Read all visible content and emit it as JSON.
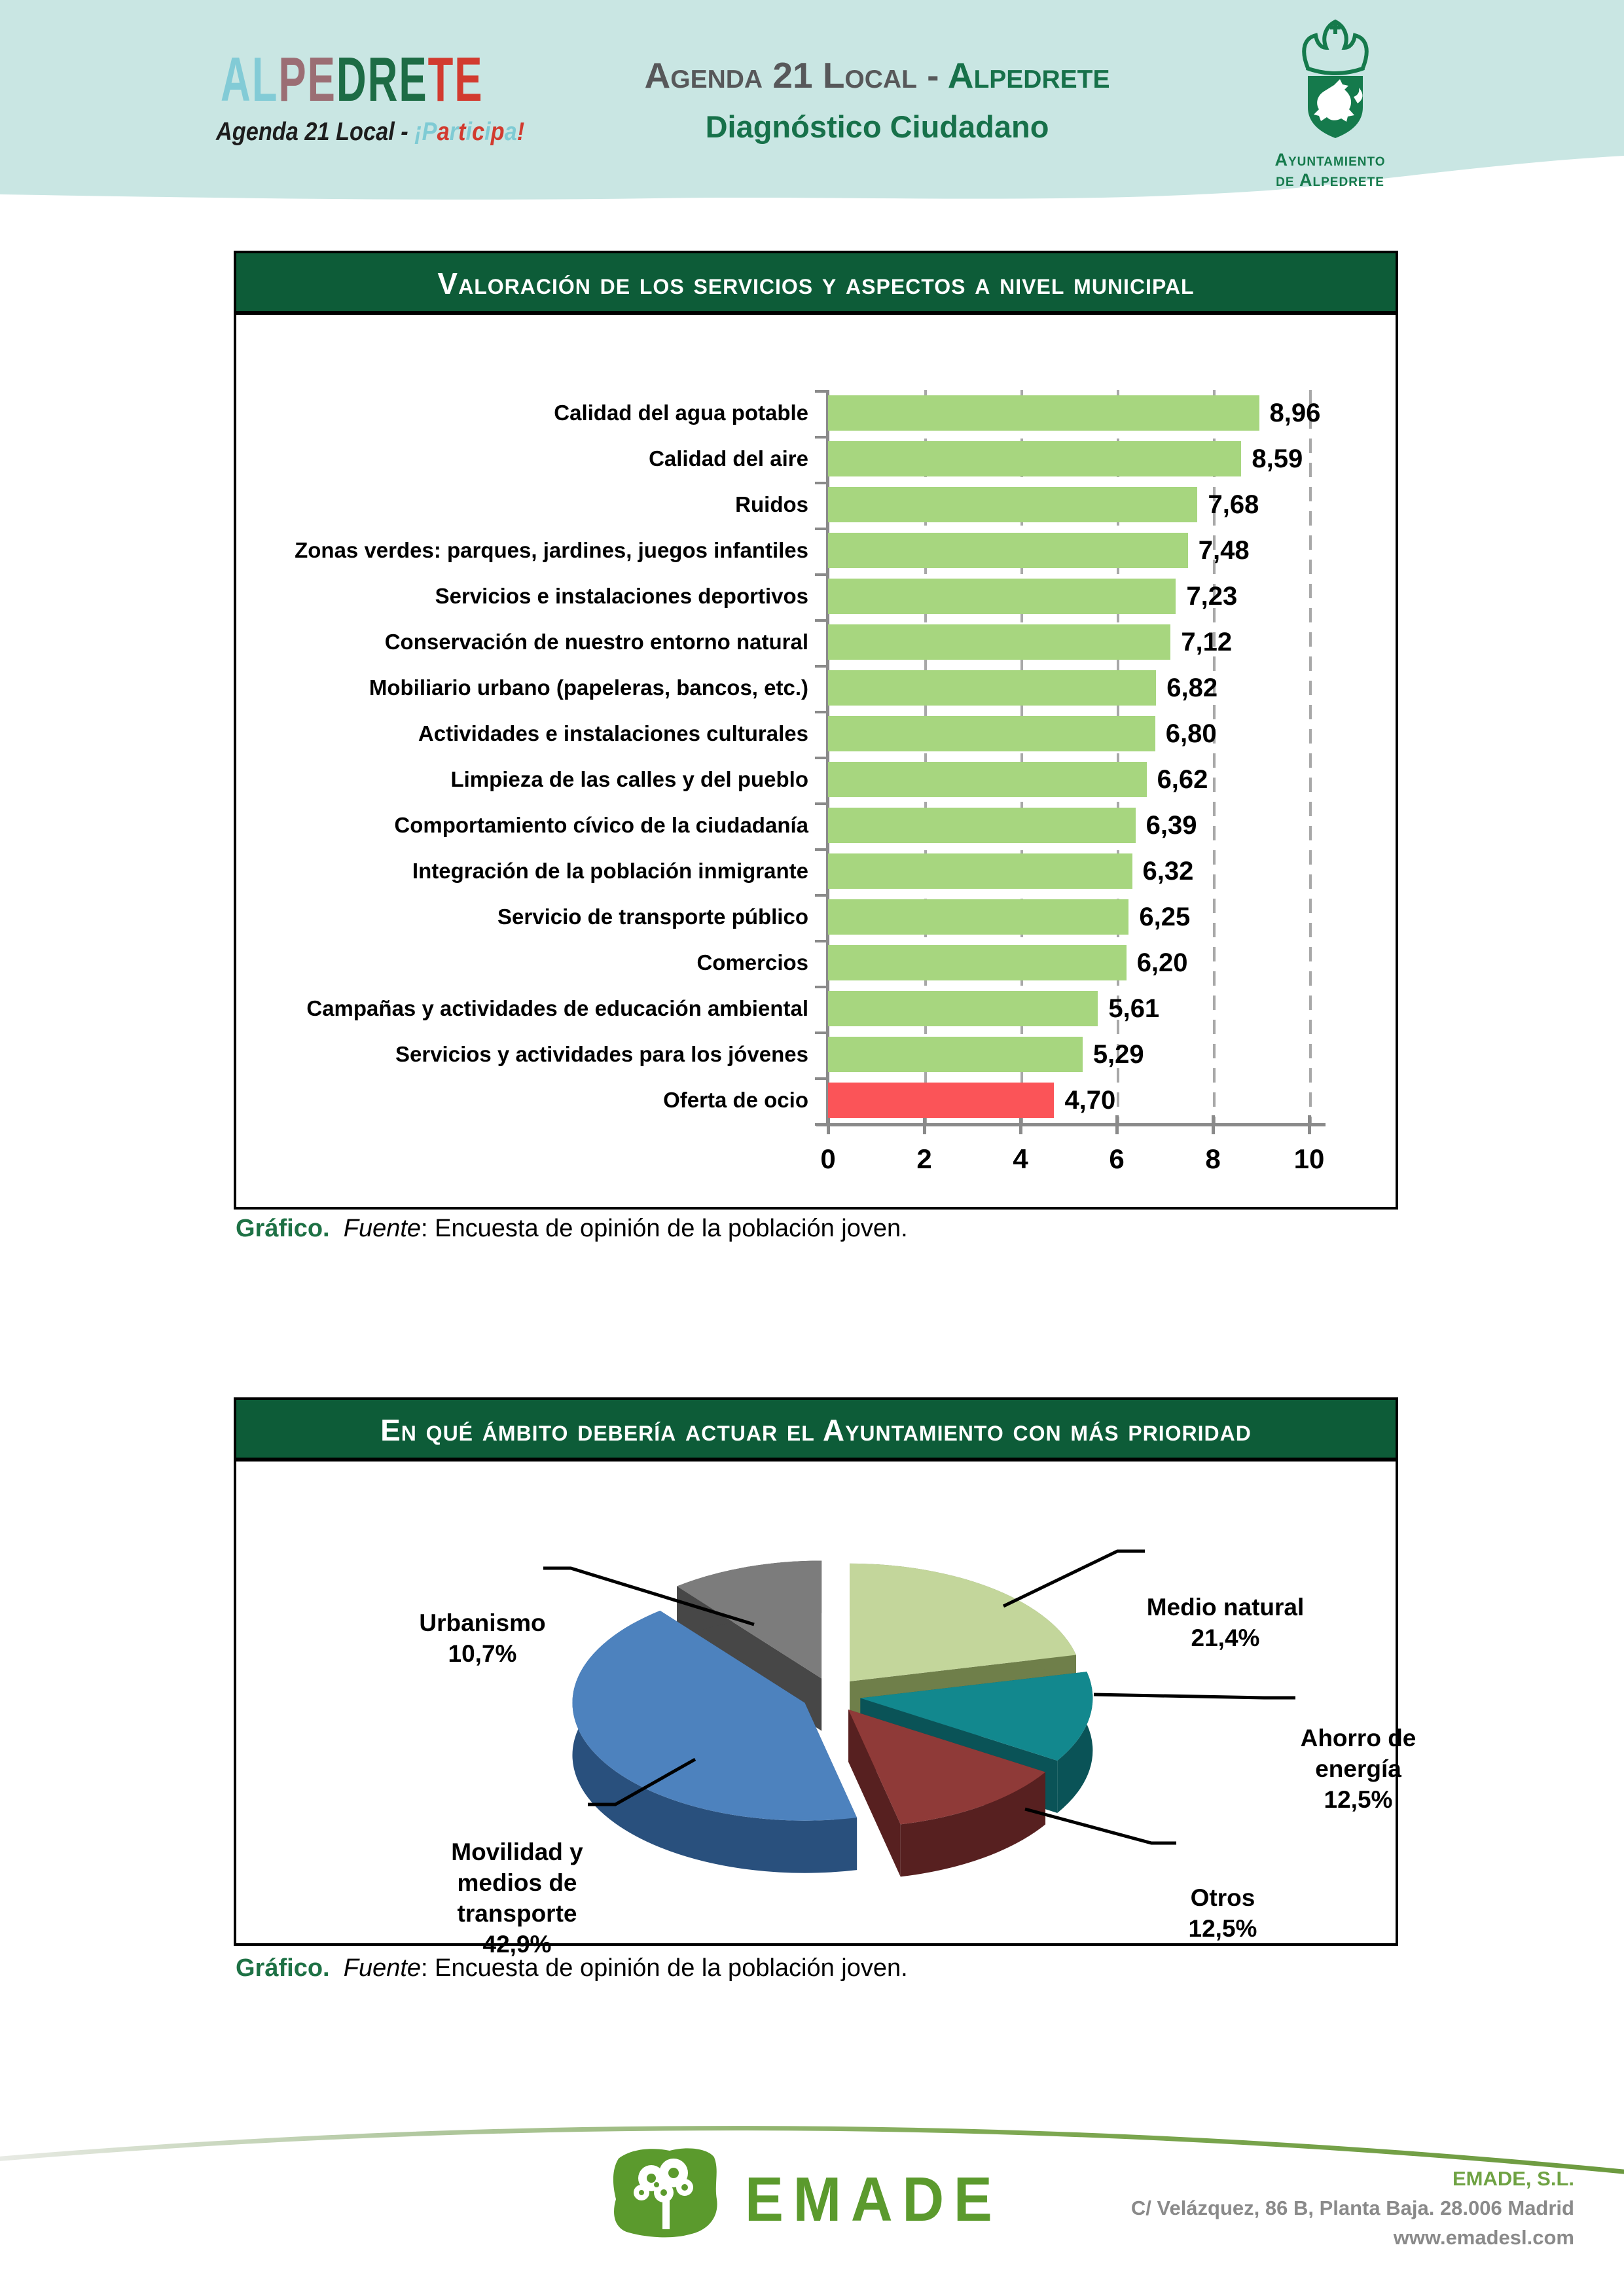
{
  "header": {
    "logo_word": [
      {
        "ch": "A",
        "c": "#82cbd6"
      },
      {
        "ch": "L",
        "c": "#82cbd6"
      },
      {
        "ch": "P",
        "c": "#9b6e74"
      },
      {
        "ch": "E",
        "c": "#9b6e74"
      },
      {
        "ch": "D",
        "c": "#1d6c45"
      },
      {
        "ch": "R",
        "c": "#1d6c45"
      },
      {
        "ch": "E",
        "c": "#1d6c45"
      },
      {
        "ch": "T",
        "c": "#d23b2f"
      },
      {
        "ch": "E",
        "c": "#d23b2f"
      }
    ],
    "logo_tagline_prefix": "Agenda 21 Local - ",
    "logo_tagline_participa": [
      {
        "ch": "¡",
        "c": "#7fcbd4"
      },
      {
        "ch": "P",
        "c": "#7fcbd4"
      },
      {
        "ch": "a",
        "c": "#d23b2f"
      },
      {
        "ch": "r",
        "c": "#7fcbd4"
      },
      {
        "ch": "t",
        "c": "#d23b2f"
      },
      {
        "ch": "i",
        "c": "#7fcbd4"
      },
      {
        "ch": "c",
        "c": "#d23b2f"
      },
      {
        "ch": "i",
        "c": "#7fcbd4"
      },
      {
        "ch": "p",
        "c": "#d23b2f"
      },
      {
        "ch": "a",
        "c": "#7fcbd4"
      },
      {
        "ch": "!",
        "c": "#d23b2f"
      }
    ],
    "center_line1_gray": "Agenda 21 Local - ",
    "center_line1_green": "Alpedrete",
    "center_line2": "Diagnóstico Ciudadano",
    "municipal": {
      "line1": "Ayuntamiento",
      "line2": "de Alpedrete"
    }
  },
  "chart_data": [
    {
      "type": "bar",
      "orientation": "horizontal",
      "title": "Valoración de los servicios y aspectos a nivel municipal",
      "xlim": [
        0,
        10
      ],
      "x_ticks": [
        "0",
        "2",
        "4",
        "6",
        "8",
        "10"
      ],
      "grid": "dashed vertical gridlines at even values",
      "bar_color": "#a7d67f",
      "highlight_color": "#fb5458",
      "highlight_index": 15,
      "categories": [
        "Calidad del agua potable",
        "Calidad del aire",
        "Ruidos",
        "Zonas verdes: parques, jardines, juegos infantiles",
        "Servicios e instalaciones deportivos",
        "Conservación de nuestro entorno natural",
        "Mobiliario urbano (papeleras, bancos, etc.)",
        "Actividades e instalaciones culturales",
        "Limpieza de las calles y del pueblo",
        "Comportamiento cívico de la ciudadanía",
        "Integración de la población inmigrante",
        "Servicio de transporte público",
        "Comercios",
        "Campañas y actividades de educación ambiental",
        "Servicios y actividades para los jóvenes",
        "Oferta de ocio"
      ],
      "values": [
        8.96,
        8.59,
        7.68,
        7.48,
        7.23,
        7.12,
        6.82,
        6.8,
        6.62,
        6.39,
        6.32,
        6.25,
        6.2,
        5.61,
        5.29,
        4.7
      ],
      "value_labels": [
        "8,96",
        "8,59",
        "7,68",
        "7,48",
        "7,23",
        "7,12",
        "6,82",
        "6,80",
        "6,62",
        "6,39",
        "6,32",
        "6,25",
        "6,20",
        "5,61",
        "5,29",
        "4,70"
      ]
    },
    {
      "type": "pie",
      "style": "3d exploded, clockwise from 12 o'clock",
      "title": "En qué ámbito debería actuar el Ayuntamiento con más prioridad",
      "slices": [
        {
          "label": "Medio natural",
          "pct": 21.4,
          "display": "21,4%",
          "color": "#c3d69b",
          "side": "#6f7f4a",
          "label_lines": [
            "Medio natural",
            "21,4%"
          ]
        },
        {
          "label": "Ahorro de energía",
          "pct": 12.5,
          "display": "12,5%",
          "color": "#12888e",
          "side": "#0a5357",
          "label_lines": [
            "Ahorro de",
            "energía",
            "12,5%"
          ]
        },
        {
          "label": "Otros",
          "pct": 12.5,
          "display": "12,5%",
          "color": "#8f3a38",
          "side": "#572020",
          "label_lines": [
            "Otros",
            "12,5%"
          ]
        },
        {
          "label": "Movilidad y medios de transporte",
          "pct": 42.9,
          "display": "42,9%",
          "color": "#4d82be",
          "side": "#29507d",
          "label_lines": [
            "Movilidad y",
            "medios de",
            "transporte",
            "42,9%"
          ]
        },
        {
          "label": "Urbanismo",
          "pct": 10.7,
          "display": "10,7%",
          "color": "#7c7c7c",
          "side": "#474747",
          "label_lines": [
            "Urbanismo",
            "10,7%"
          ]
        }
      ]
    }
  ],
  "caption": {
    "prefix": "Gráfico.",
    "fuente": "Fuente",
    "rest": ": Encuesta de opinión de la población joven."
  },
  "footer": {
    "brand": "EMADE",
    "company": "EMADE, S.L.",
    "address": "C/ Velázquez, 86 B, Planta Baja. 28.006 Madrid",
    "website": "www.emadesl.com"
  }
}
